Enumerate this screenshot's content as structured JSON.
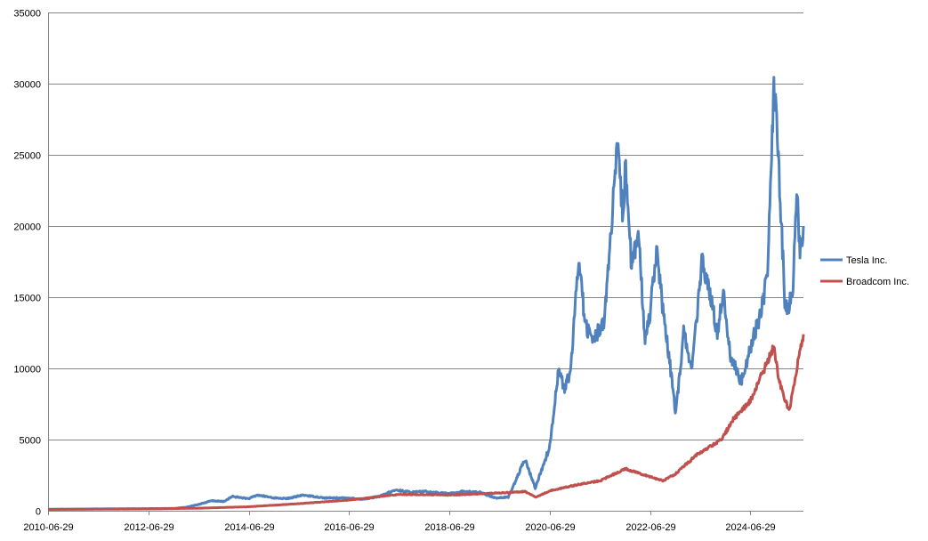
{
  "chart_data": {
    "type": "line",
    "title": "",
    "xlabel": "",
    "ylabel": "",
    "x_tick_labels": [
      "2010-06-29",
      "2012-06-29",
      "2014-06-29",
      "2016-06-29",
      "2018-06-29",
      "2020-06-29",
      "2022-06-29",
      "2024-06-29"
    ],
    "y_tick_labels": [
      "0",
      "5000",
      "10000",
      "15000",
      "20000",
      "25000",
      "30000",
      "35000"
    ],
    "xlim": [
      "2010-06-29",
      "2025-07-20"
    ],
    "ylim": [
      0,
      35000
    ],
    "grid": "horizontal",
    "legend_position": "right",
    "series": [
      {
        "name": "Tesla Inc.",
        "color": "#4F81BD",
        "points": [
          [
            "2010-06-29",
            100
          ],
          [
            "2011-06-29",
            130
          ],
          [
            "2012-06-29",
            150
          ],
          [
            "2013-01-01",
            160
          ],
          [
            "2013-04-01",
            250
          ],
          [
            "2013-07-01",
            450
          ],
          [
            "2013-10-01",
            700
          ],
          [
            "2014-01-01",
            650
          ],
          [
            "2014-03-01",
            1000
          ],
          [
            "2014-06-29",
            850
          ],
          [
            "2014-09-01",
            1100
          ],
          [
            "2015-01-01",
            900
          ],
          [
            "2015-04-01",
            850
          ],
          [
            "2015-08-01",
            1100
          ],
          [
            "2016-01-01",
            900
          ],
          [
            "2016-06-29",
            900
          ],
          [
            "2016-10-01",
            800
          ],
          [
            "2017-02-01",
            1000
          ],
          [
            "2017-06-01",
            1450
          ],
          [
            "2017-10-01",
            1300
          ],
          [
            "2018-01-01",
            1350
          ],
          [
            "2018-06-29",
            1200
          ],
          [
            "2018-10-01",
            1350
          ],
          [
            "2019-02-01",
            1300
          ],
          [
            "2019-06-01",
            900
          ],
          [
            "2019-09-01",
            950
          ],
          [
            "2020-01-01",
            3600
          ],
          [
            "2020-03-15",
            1600
          ],
          [
            "2020-06-29",
            4500
          ],
          [
            "2020-09-01",
            10000
          ],
          [
            "2020-10-15",
            8500
          ],
          [
            "2020-12-01",
            10000
          ],
          [
            "2021-01-26",
            18000
          ],
          [
            "2021-03-15",
            13000
          ],
          [
            "2021-05-15",
            12000
          ],
          [
            "2021-08-01",
            13500
          ],
          [
            "2021-11-04",
            25500
          ],
          [
            "2021-12-15",
            20500
          ],
          [
            "2022-01-03",
            24500
          ],
          [
            "2022-02-15",
            17000
          ],
          [
            "2022-04-04",
            19500
          ],
          [
            "2022-05-24",
            12000
          ],
          [
            "2022-06-29",
            14000
          ],
          [
            "2022-08-15",
            18500
          ],
          [
            "2022-10-01",
            14000
          ],
          [
            "2022-12-01",
            9500
          ],
          [
            "2023-01-03",
            6800
          ],
          [
            "2023-03-01",
            12500
          ],
          [
            "2023-05-01",
            10000
          ],
          [
            "2023-07-15",
            17700
          ],
          [
            "2023-09-01",
            15500
          ],
          [
            "2023-11-01",
            12500
          ],
          [
            "2023-12-15",
            15500
          ],
          [
            "2024-02-01",
            11000
          ],
          [
            "2024-04-22",
            9000
          ],
          [
            "2024-06-29",
            11500
          ],
          [
            "2024-09-01",
            13500
          ],
          [
            "2024-11-01",
            16500
          ],
          [
            "2024-12-17",
            30000
          ],
          [
            "2025-01-15",
            25500
          ],
          [
            "2025-03-10",
            14000
          ],
          [
            "2025-05-01",
            15000
          ],
          [
            "2025-06-01",
            22500
          ],
          [
            "2025-06-25",
            18000
          ],
          [
            "2025-07-20",
            20000
          ]
        ]
      },
      {
        "name": "Broadcom Inc.",
        "color": "#C0504D",
        "points": [
          [
            "2010-06-29",
            100
          ],
          [
            "2012-06-29",
            130
          ],
          [
            "2013-06-29",
            180
          ],
          [
            "2014-06-29",
            280
          ],
          [
            "2015-06-29",
            500
          ],
          [
            "2016-06-29",
            750
          ],
          [
            "2017-06-29",
            1150
          ],
          [
            "2018-06-29",
            1100
          ],
          [
            "2019-06-29",
            1250
          ],
          [
            "2020-01-01",
            1350
          ],
          [
            "2020-03-20",
            950
          ],
          [
            "2020-06-29",
            1400
          ],
          [
            "2021-01-01",
            1800
          ],
          [
            "2021-06-29",
            2100
          ],
          [
            "2021-12-31",
            2950
          ],
          [
            "2022-06-29",
            2400
          ],
          [
            "2022-10-01",
            2100
          ],
          [
            "2023-01-01",
            2600
          ],
          [
            "2023-06-01",
            3900
          ],
          [
            "2023-12-01",
            5000
          ],
          [
            "2024-03-01",
            6500
          ],
          [
            "2024-06-29",
            7700
          ],
          [
            "2024-12-16",
            11500
          ],
          [
            "2025-01-27",
            9000
          ],
          [
            "2025-04-07",
            7000
          ],
          [
            "2025-06-01",
            10000
          ],
          [
            "2025-07-20",
            12400
          ]
        ]
      }
    ]
  }
}
